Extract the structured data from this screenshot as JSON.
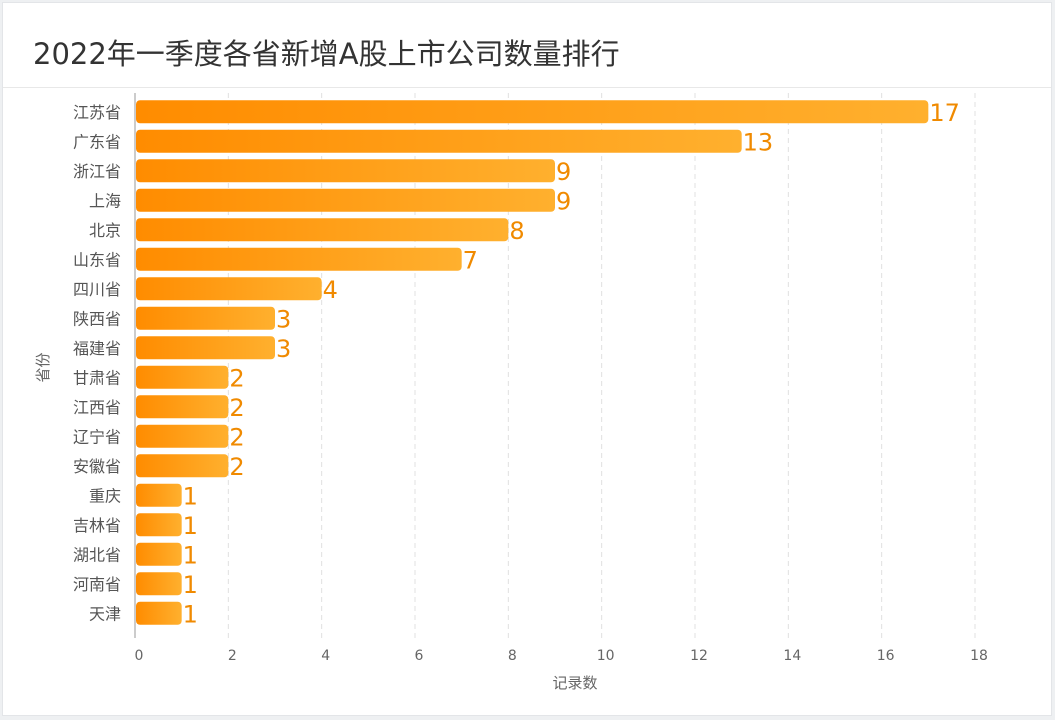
{
  "title": "2022年一季度各省新增A股上市公司数量排行",
  "chart_data": {
    "type": "bar",
    "orientation": "horizontal",
    "title": "2022年一季度各省新增A股上市公司数量排行",
    "xlabel": "记录数",
    "ylabel": "省份",
    "xlim": [
      0,
      18
    ],
    "x_ticks": [
      0,
      2,
      4,
      6,
      8,
      10,
      12,
      14,
      16,
      18
    ],
    "grid": "vertical-dashed",
    "bar_color_start": "#ff8c00",
    "bar_color_end": "#ffb02e",
    "label_color": "#f08a00",
    "categories": [
      "江苏省",
      "广东省",
      "浙江省",
      "上海",
      "北京",
      "山东省",
      "四川省",
      "陕西省",
      "福建省",
      "甘肃省",
      "江西省",
      "辽宁省",
      "安徽省",
      "重庆",
      "吉林省",
      "湖北省",
      "河南省",
      "天津"
    ],
    "values": [
      17,
      13,
      9,
      9,
      8,
      7,
      4,
      3,
      3,
      2,
      2,
      2,
      2,
      1,
      1,
      1,
      1,
      1
    ]
  }
}
